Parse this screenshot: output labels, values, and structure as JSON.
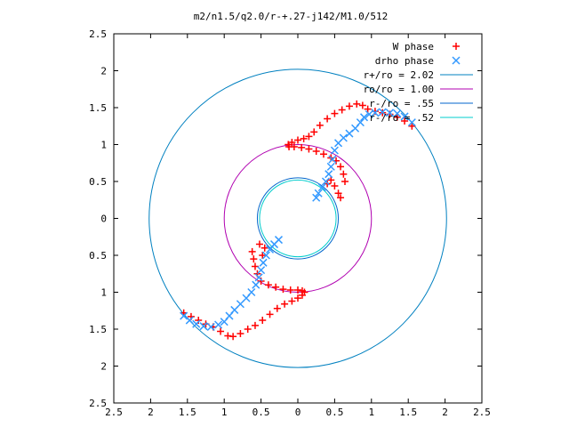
{
  "chart_data": {
    "type": "scatter",
    "title": "m2/n1.5/q2.0/r-+.27-j142/M1.0/512",
    "xlabel": "",
    "ylabel": "",
    "xlim": [
      -2.5,
      2.5
    ],
    "ylim": [
      -2.5,
      2.5
    ],
    "x_ticks": [
      -2.5,
      -2,
      -1.5,
      -1,
      -0.5,
      0,
      0.5,
      1,
      1.5,
      2,
      2.5
    ],
    "y_ticks": [
      -2.5,
      -2,
      -1.5,
      -1,
      -0.5,
      0,
      0.5,
      1,
      1.5,
      2,
      2.5
    ],
    "x_tick_labels": [
      "2.5",
      "2",
      "1.5",
      "1",
      "0.5",
      "0",
      "0.5",
      "1",
      "1.5",
      "2",
      "2.5"
    ],
    "y_tick_labels": [
      "2.5",
      "2",
      "1.5",
      "1",
      "0.5",
      "0",
      "0.5",
      "1",
      "1.5",
      "2",
      "2.5"
    ],
    "grid": false,
    "legend_position": "top-right",
    "series": [
      {
        "name": "W phase",
        "marker": "+",
        "color": "#ff0000",
        "points": [
          [
            1.55,
            1.25
          ],
          [
            1.45,
            1.32
          ],
          [
            1.35,
            1.37
          ],
          [
            1.25,
            1.41
          ],
          [
            1.15,
            1.43
          ],
          [
            1.05,
            1.45
          ],
          [
            0.95,
            1.48
          ],
          [
            0.88,
            1.53
          ],
          [
            0.8,
            1.55
          ],
          [
            0.7,
            1.52
          ],
          [
            0.6,
            1.47
          ],
          [
            0.5,
            1.42
          ],
          [
            0.4,
            1.35
          ],
          [
            0.3,
            1.26
          ],
          [
            0.22,
            1.17
          ],
          [
            0.15,
            1.11
          ],
          [
            0.08,
            1.08
          ],
          [
            0.0,
            1.06
          ],
          [
            -0.08,
            1.03
          ],
          [
            -0.13,
            1.0
          ],
          [
            -0.12,
            0.97
          ],
          [
            -0.05,
            0.97
          ],
          [
            0.05,
            0.96
          ],
          [
            0.15,
            0.94
          ],
          [
            0.25,
            0.91
          ],
          [
            0.35,
            0.87
          ],
          [
            0.45,
            0.82
          ],
          [
            0.52,
            0.78
          ],
          [
            0.58,
            0.7
          ],
          [
            0.62,
            0.6
          ],
          [
            0.64,
            0.5
          ],
          [
            0.4,
            0.47
          ],
          [
            0.45,
            0.52
          ],
          [
            0.5,
            0.44
          ],
          [
            0.55,
            0.34
          ],
          [
            0.58,
            0.28
          ],
          [
            -1.55,
            -1.28
          ],
          [
            -1.45,
            -1.33
          ],
          [
            -1.35,
            -1.38
          ],
          [
            -1.25,
            -1.43
          ],
          [
            -1.15,
            -1.47
          ],
          [
            -1.05,
            -1.53
          ],
          [
            -0.95,
            -1.59
          ],
          [
            -0.88,
            -1.6
          ],
          [
            -0.78,
            -1.56
          ],
          [
            -0.68,
            -1.5
          ],
          [
            -0.58,
            -1.45
          ],
          [
            -0.48,
            -1.38
          ],
          [
            -0.38,
            -1.3
          ],
          [
            -0.28,
            -1.22
          ],
          [
            -0.18,
            -1.16
          ],
          [
            -0.08,
            -1.12
          ],
          [
            0.0,
            -1.08
          ],
          [
            0.06,
            -1.04
          ],
          [
            0.09,
            -1.0
          ],
          [
            0.06,
            -0.98
          ],
          [
            0.0,
            -0.97
          ],
          [
            -0.1,
            -0.97
          ],
          [
            -0.2,
            -0.96
          ],
          [
            -0.3,
            -0.93
          ],
          [
            -0.4,
            -0.9
          ],
          [
            -0.5,
            -0.85
          ],
          [
            -0.55,
            -0.75
          ],
          [
            -0.58,
            -0.65
          ],
          [
            -0.6,
            -0.55
          ],
          [
            -0.62,
            -0.45
          ],
          [
            -0.45,
            -0.4
          ],
          [
            -0.48,
            -0.5
          ],
          [
            -0.52,
            -0.35
          ]
        ]
      },
      {
        "name": "drho phase",
        "marker": "x",
        "color": "#3399ff",
        "points": [
          [
            1.55,
            1.3
          ],
          [
            1.45,
            1.38
          ],
          [
            1.35,
            1.42
          ],
          [
            1.25,
            1.43
          ],
          [
            1.15,
            1.44
          ],
          [
            1.05,
            1.43
          ],
          [
            0.97,
            1.41
          ],
          [
            0.9,
            1.37
          ],
          [
            0.85,
            1.3
          ],
          [
            0.78,
            1.22
          ],
          [
            0.7,
            1.15
          ],
          [
            0.62,
            1.09
          ],
          [
            0.55,
            1.02
          ],
          [
            0.5,
            0.92
          ],
          [
            0.47,
            0.8
          ],
          [
            0.45,
            0.7
          ],
          [
            0.42,
            0.6
          ],
          [
            0.38,
            0.5
          ],
          [
            0.33,
            0.42
          ],
          [
            0.28,
            0.34
          ],
          [
            0.25,
            0.28
          ],
          [
            -1.55,
            -1.32
          ],
          [
            -1.47,
            -1.38
          ],
          [
            -1.38,
            -1.43
          ],
          [
            -1.28,
            -1.46
          ],
          [
            -1.18,
            -1.47
          ],
          [
            -1.08,
            -1.44
          ],
          [
            -1.0,
            -1.4
          ],
          [
            -0.93,
            -1.32
          ],
          [
            -0.86,
            -1.24
          ],
          [
            -0.78,
            -1.16
          ],
          [
            -0.7,
            -1.08
          ],
          [
            -0.63,
            -1.0
          ],
          [
            -0.57,
            -0.9
          ],
          [
            -0.53,
            -0.8
          ],
          [
            -0.5,
            -0.7
          ],
          [
            -0.47,
            -0.6
          ],
          [
            -0.43,
            -0.5
          ],
          [
            -0.38,
            -0.42
          ],
          [
            -0.32,
            -0.35
          ],
          [
            -0.26,
            -0.29
          ]
        ]
      }
    ],
    "circles": [
      {
        "name": "r+/ro = 2.02",
        "radius": 2.02,
        "color": "#0080c0"
      },
      {
        "name": "ro/ro = 1.00",
        "radius": 1.0,
        "color": "#b000b0"
      },
      {
        "name": "r-/ro = .55",
        "radius": 0.55,
        "color": "#0066cc"
      },
      {
        "name": "r-/ro = .52",
        "radius": 0.52,
        "color": "#00cccc"
      }
    ]
  }
}
